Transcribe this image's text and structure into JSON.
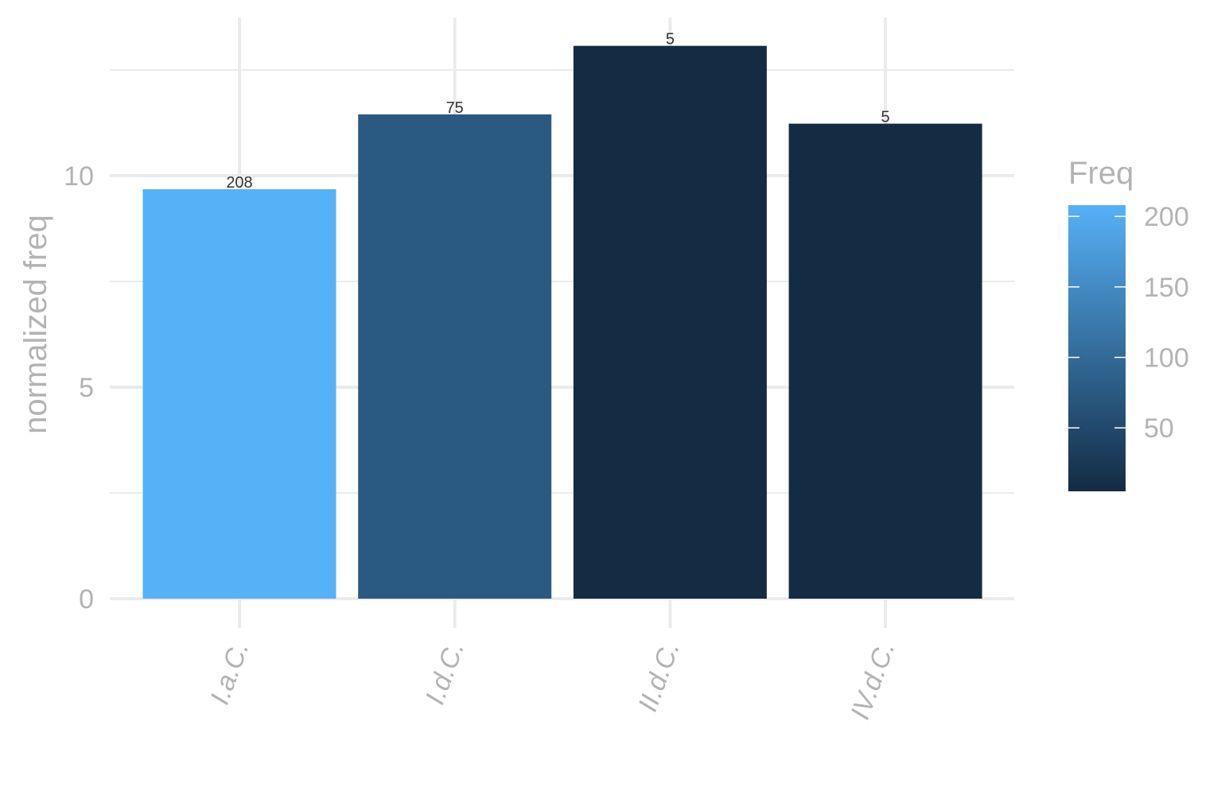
{
  "chart_data": {
    "type": "bar",
    "categories": [
      "I.a.C.",
      "I.d.C.",
      "II.d.C.",
      "IV.d.C."
    ],
    "values": [
      9.68,
      11.45,
      13.07,
      11.23
    ],
    "labels": [
      "208",
      "75",
      "5",
      "5"
    ],
    "freq": [
      208,
      75,
      5,
      5
    ],
    "xlabel": "",
    "ylabel": "normalized freq",
    "ylim": [
      0,
      13.7
    ],
    "yticks": [
      0,
      5,
      10
    ],
    "grid": true,
    "legend": {
      "title": "Freq",
      "position": "right",
      "type": "colorbar",
      "range": [
        5,
        208
      ],
      "ticks": [
        50,
        100,
        150,
        200
      ],
      "colors": {
        "low": "#132B43",
        "high": "#56B1F7"
      }
    }
  }
}
